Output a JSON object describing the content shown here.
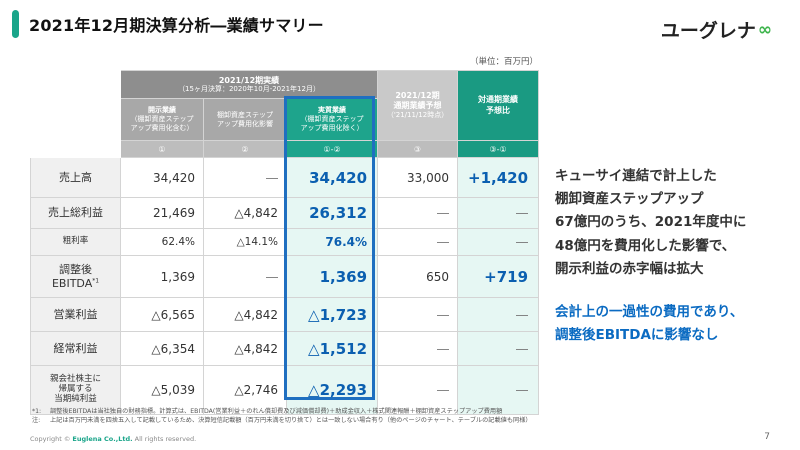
{
  "header": {
    "title": "2021年12月期決算分析―業績サマリー"
  },
  "logo": {
    "text": "ユーグレナ",
    "mark": "∞"
  },
  "unit_note": "（単位：百万円）",
  "table": {
    "group_header": {
      "title": "2021/12期実績",
      "sub": "（15ヶ月決算：2020年10月-2021年12月）"
    },
    "columns": [
      {
        "label_line1": "開示業績",
        "label_line2": "（棚卸資産ステップ",
        "label_line3": "アップ費用化含む）",
        "num": "①"
      },
      {
        "label_line1": "棚卸資産ステップ",
        "label_line2": "アップ費用化影響",
        "label_line3": "",
        "num": "②"
      },
      {
        "label_line1": "実質業績",
        "label_line2": "（棚卸資産ステップ",
        "label_line3": "アップ費用化除く）",
        "num": "①-②"
      }
    ],
    "forecast_header": {
      "line1": "2021/12期",
      "line2": "通期業績予想",
      "sub": "（'21/11/12時点）",
      "num": "③"
    },
    "compare_header": {
      "line1": "対通期業績",
      "line2": "予想比",
      "num": "③-①"
    },
    "rows": [
      {
        "label": "売上高",
        "disclosed": "34,420",
        "impact": "―",
        "actual": "34,420",
        "forecast": "33,000",
        "compare": "+1,420"
      },
      {
        "label": "売上総利益",
        "disclosed": "21,469",
        "impact": "△4,842",
        "actual": "26,312",
        "forecast": "―",
        "compare": "―"
      },
      {
        "label": "粗利率",
        "disclosed": "62.4%",
        "impact": "△14.1%",
        "actual": "76.4%",
        "forecast": "―",
        "compare": "―"
      },
      {
        "label_line1": "調整後",
        "label_line2": "EBITDA",
        "label_sup": "*1",
        "disclosed": "1,369",
        "impact": "―",
        "actual": "1,369",
        "forecast": "650",
        "compare": "+719"
      },
      {
        "label": "営業利益",
        "disclosed": "△6,565",
        "impact": "△4,842",
        "actual": "△1,723",
        "forecast": "―",
        "compare": "―"
      },
      {
        "label": "経常利益",
        "disclosed": "△6,354",
        "impact": "△4,842",
        "actual": "△1,512",
        "forecast": "―",
        "compare": "―"
      },
      {
        "label_line1": "親会社株主に",
        "label_line2": "帰属する",
        "label_line3": "当期純利益",
        "disclosed": "△5,039",
        "impact": "△2,746",
        "actual": "△2,293",
        "forecast": "―",
        "compare": "―"
      }
    ]
  },
  "commentary": {
    "lines": [
      "キューサイ連結で計上した",
      "棚卸資産ステップアップ",
      "67億円のうち、2021年度中に",
      "48億円を費用化した影響で、",
      "開示利益の赤字幅は拡大"
    ],
    "highlight_lines": [
      "会計上の一過性の費用であり、",
      "調整後EBITDAに影響なし"
    ]
  },
  "footnotes": {
    "note1_mark": "*1:",
    "note1": "調整後EBITDAは当社独自の財務指標。計算式は、EBITDA(営業利益＋のれん償却費及び減価償却費)＋助成金収入＋株式関連報酬＋棚卸資産ステップアップ費用額",
    "note2_mark": "注:",
    "note2": "上記は百万円未満を四捨五入して記載しているため、決算短信記載額（百万円未満を切り捨て）とは一致しない場合有り（他のページのチャート、テーブルの記載値も同様）"
  },
  "copyright": {
    "prefix": "Copyright © ",
    "company": "Euglena Co.,Ltd.",
    "suffix": " All rights reserved."
  },
  "page_number": "7",
  "colors": {
    "accent_green": "#1aa58a",
    "highlight_blue": "#1f6fc0",
    "value_blue": "#0b5fb0"
  }
}
